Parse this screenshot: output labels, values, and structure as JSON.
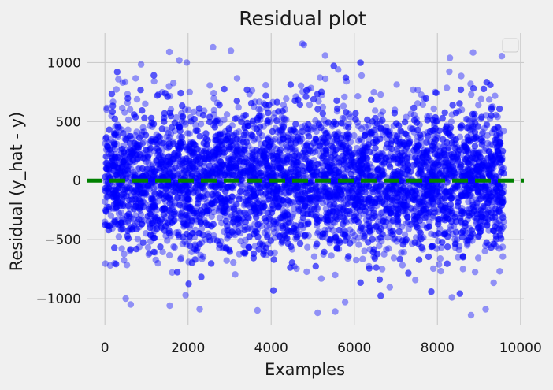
{
  "chart_data": {
    "type": "scatter",
    "title": "Residual plot",
    "xlabel": "Examples",
    "ylabel": "Residual (y_hat - y)",
    "xlim": [
      -440,
      10080
    ],
    "ylim": [
      -1220,
      1250
    ],
    "xticks": [
      0,
      2000,
      4000,
      6000,
      8000,
      10000
    ],
    "xtick_labels": [
      "0",
      "2000",
      "4000",
      "6000",
      "8000",
      "10000"
    ],
    "yticks": [
      -1000,
      -500,
      0,
      500,
      1000
    ],
    "ytick_labels": [
      "−1000",
      "−500",
      "0",
      "500",
      "1000"
    ],
    "grid": true,
    "legend": "top-right (empty)",
    "series": [
      {
        "marker_color": "#0000ff",
        "alpha": 0.4,
        "x_range": [
          0,
          9600
        ],
        "distribution": "approx. normal around 0, sd about 310",
        "n_points_approx": 9600,
        "extreme_points": [
          {
            "x": 1550,
            "y": 1090
          },
          {
            "x": 1790,
            "y": 1020
          },
          {
            "x": 2600,
            "y": 1130
          },
          {
            "x": 3030,
            "y": 1100
          },
          {
            "x": 4750,
            "y": 1160
          },
          {
            "x": 4790,
            "y": 1150
          },
          {
            "x": 5300,
            "y": 1060
          },
          {
            "x": 8300,
            "y": 1040
          },
          {
            "x": 8860,
            "y": 1085
          },
          {
            "x": 9550,
            "y": 1055
          },
          {
            "x": 1970,
            "y": 1000
          },
          {
            "x": 870,
            "y": 985
          },
          {
            "x": 500,
            "y": -1000
          },
          {
            "x": 620,
            "y": -1050
          },
          {
            "x": 1560,
            "y": -1060
          },
          {
            "x": 2280,
            "y": -1090
          },
          {
            "x": 3670,
            "y": -1100
          },
          {
            "x": 5120,
            "y": -1120
          },
          {
            "x": 5540,
            "y": -1110
          },
          {
            "x": 8810,
            "y": -1140
          },
          {
            "x": 9160,
            "y": -1090
          },
          {
            "x": 8350,
            "y": -990
          },
          {
            "x": 1940,
            "y": -970
          },
          {
            "x": 5780,
            "y": -1030
          }
        ]
      },
      {
        "marker_color": "#008000",
        "line_style": "dashed",
        "x": [
          -440,
          10080
        ],
        "y": [
          0,
          0
        ]
      }
    ]
  }
}
